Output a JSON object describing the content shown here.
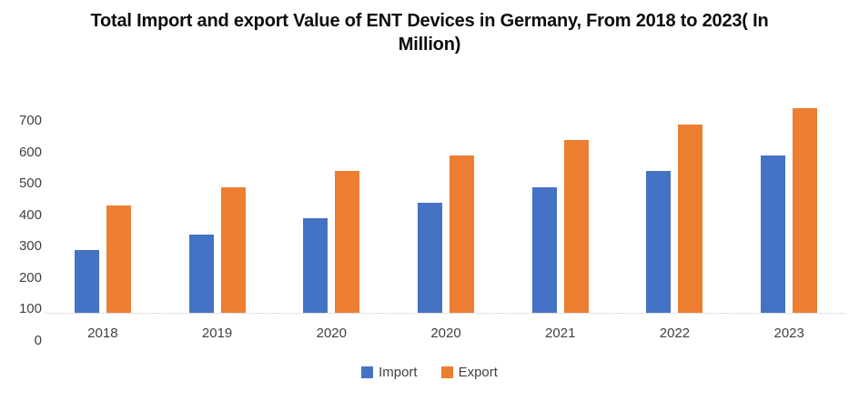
{
  "chart_data": {
    "type": "bar",
    "title": "Total Import and export Value of ENT Devices in Germany, From 2018 to 2023( In Million)",
    "categories": [
      "2018",
      "2019",
      "2020",
      "2020",
      "2021",
      "2022",
      "2023"
    ],
    "series": [
      {
        "name": "Import",
        "color": "#4472C4",
        "values": [
          200,
          250,
          300,
          350,
          400,
          450,
          500
        ]
      },
      {
        "name": "Export",
        "color": "#ED7D31",
        "values": [
          340,
          400,
          450,
          500,
          550,
          600,
          650
        ]
      }
    ],
    "xlabel": "",
    "ylabel": "",
    "ylim": [
      0,
      700
    ],
    "yticks": [
      0,
      100,
      200,
      300,
      400,
      500,
      600,
      700
    ],
    "grid": false,
    "legend_position": "bottom-center",
    "baseline_style": "dotted",
    "baseline_color": "#c9c9c9",
    "text_color": "#404040",
    "title_color": "#0d0d0d",
    "background": "#ffffff"
  }
}
